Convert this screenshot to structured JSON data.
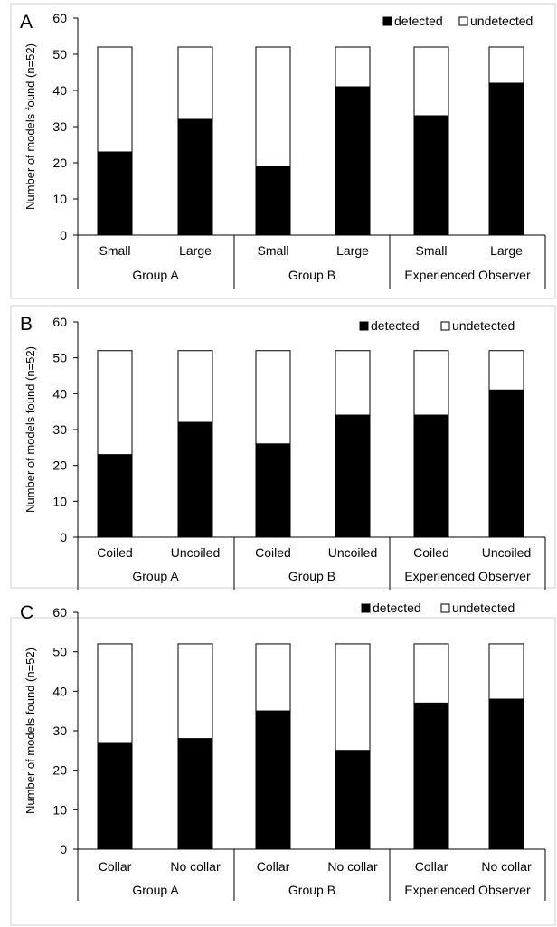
{
  "chart_data": [
    {
      "type": "bar",
      "stacked": true,
      "panel_label": "A",
      "ylabel": "Number of models found (n=52)",
      "ylim": [
        0,
        60
      ],
      "yticks": [
        0,
        10,
        20,
        30,
        40,
        50,
        60
      ],
      "categories": [
        "Small",
        "Large",
        "Small",
        "Large",
        "Small",
        "Large"
      ],
      "groups": [
        "Group A",
        "Group B",
        "Experienced Observer"
      ],
      "legend": [
        "detected",
        "undetected"
      ],
      "legend_position": "top-right",
      "series": [
        {
          "name": "detected",
          "color": "#000000",
          "values": [
            23,
            32,
            19,
            41,
            33,
            42
          ]
        },
        {
          "name": "undetected",
          "color": "#ffffff",
          "values": [
            29,
            20,
            33,
            11,
            19,
            10
          ]
        }
      ]
    },
    {
      "type": "bar",
      "stacked": true,
      "panel_label": "B",
      "ylabel": "Number of models found (n=52)",
      "ylim": [
        0,
        60
      ],
      "yticks": [
        0,
        10,
        20,
        30,
        40,
        50,
        60
      ],
      "categories": [
        "Coiled",
        "Uncoiled",
        "Coiled",
        "Uncoiled",
        "Coiled",
        "Uncoiled"
      ],
      "groups": [
        "Group A",
        "Group B",
        "Experienced Observer"
      ],
      "legend": [
        "detected",
        "undetected"
      ],
      "legend_position": "top-right",
      "series": [
        {
          "name": "detected",
          "color": "#000000",
          "values": [
            23,
            32,
            26,
            34,
            34,
            41
          ]
        },
        {
          "name": "undetected",
          "color": "#ffffff",
          "values": [
            29,
            20,
            26,
            18,
            18,
            11
          ]
        }
      ]
    },
    {
      "type": "bar",
      "stacked": true,
      "panel_label": "C",
      "ylabel": "Number of models found (n=52)",
      "ylim": [
        0,
        60
      ],
      "yticks": [
        0,
        10,
        20,
        30,
        40,
        50,
        60
      ],
      "categories": [
        "Collar",
        "No collar",
        "Collar",
        "No collar",
        "Collar",
        "No collar"
      ],
      "groups": [
        "Group A",
        "Group B",
        "Experienced Observer"
      ],
      "legend": [
        "detected",
        "undetected"
      ],
      "legend_position": "top-right",
      "series": [
        {
          "name": "detected",
          "color": "#000000",
          "values": [
            27,
            28,
            35,
            25,
            37,
            38
          ]
        },
        {
          "name": "undetected",
          "color": "#ffffff",
          "values": [
            25,
            24,
            17,
            27,
            15,
            14
          ]
        }
      ]
    }
  ]
}
